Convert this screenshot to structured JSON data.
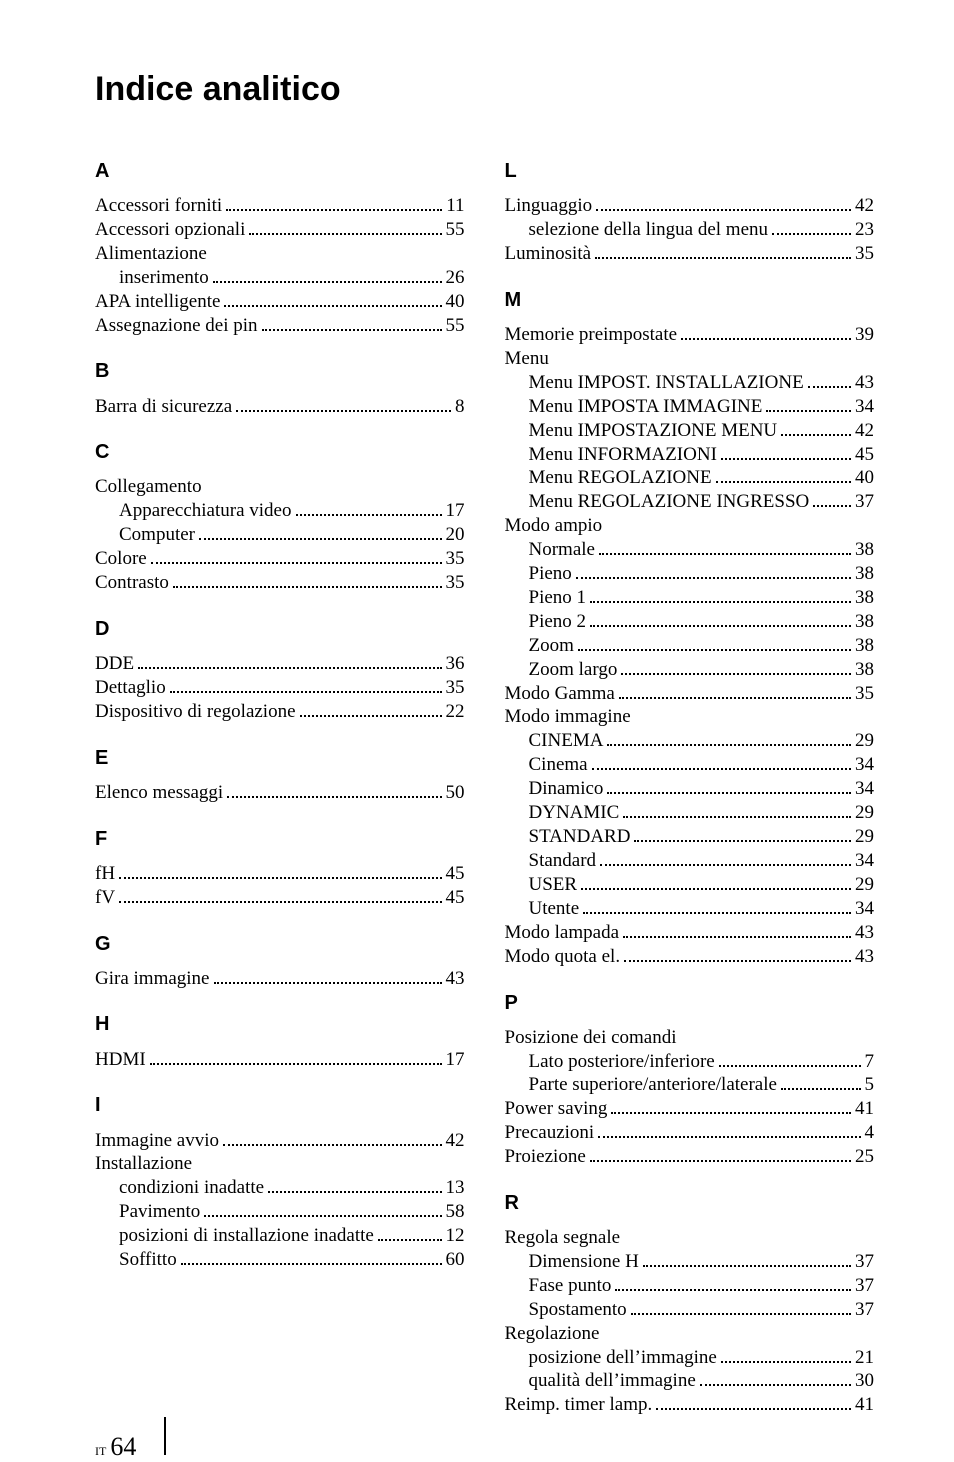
{
  "title": "Indice analitico",
  "footer": {
    "lang_code": "IT",
    "page_number": "64"
  },
  "left_column": [
    {
      "type": "letter",
      "text": "A"
    },
    {
      "type": "entry",
      "label": "Accessori forniti",
      "page": "11"
    },
    {
      "type": "entry",
      "label": "Accessori opzionali",
      "page": "55"
    },
    {
      "type": "header",
      "label": "Alimentazione"
    },
    {
      "type": "entry",
      "level": 2,
      "label": "inserimento",
      "page": "26"
    },
    {
      "type": "entry",
      "label": "APA intelligente",
      "page": "40"
    },
    {
      "type": "entry",
      "label": "Assegnazione dei pin",
      "page": "55"
    },
    {
      "type": "letter",
      "text": "B"
    },
    {
      "type": "entry",
      "label": "Barra di sicurezza",
      "page": "8"
    },
    {
      "type": "letter",
      "text": "C"
    },
    {
      "type": "header",
      "label": "Collegamento"
    },
    {
      "type": "entry",
      "level": 2,
      "label": "Apparecchiatura video",
      "page": "17"
    },
    {
      "type": "entry",
      "level": 2,
      "label": "Computer",
      "page": "20"
    },
    {
      "type": "entry",
      "label": "Colore",
      "page": "35"
    },
    {
      "type": "entry",
      "label": "Contrasto",
      "page": "35"
    },
    {
      "type": "letter",
      "text": "D"
    },
    {
      "type": "entry",
      "label": "DDE",
      "page": "36"
    },
    {
      "type": "entry",
      "label": "Dettaglio",
      "page": "35"
    },
    {
      "type": "entry",
      "label": "Dispositivo di regolazione",
      "page": "22"
    },
    {
      "type": "letter",
      "text": "E"
    },
    {
      "type": "entry",
      "label": "Elenco messaggi",
      "page": "50"
    },
    {
      "type": "letter",
      "text": "F"
    },
    {
      "type": "entry",
      "label": "fH",
      "page": "45"
    },
    {
      "type": "entry",
      "label": "fV",
      "page": "45"
    },
    {
      "type": "letter",
      "text": "G"
    },
    {
      "type": "entry",
      "label": "Gira immagine",
      "page": "43"
    },
    {
      "type": "letter",
      "text": "H"
    },
    {
      "type": "entry",
      "label": "HDMI",
      "page": "17"
    },
    {
      "type": "letter",
      "text": "I"
    },
    {
      "type": "entry",
      "label": "Immagine avvio",
      "page": "42"
    },
    {
      "type": "header",
      "label": "Installazione"
    },
    {
      "type": "entry",
      "level": 2,
      "label": "condizioni inadatte",
      "page": "13"
    },
    {
      "type": "entry",
      "level": 2,
      "label": "Pavimento",
      "page": "58"
    },
    {
      "type": "entry",
      "level": 2,
      "label": "posizioni di installazione inadatte",
      "page": "12"
    },
    {
      "type": "entry",
      "level": 2,
      "label": "Soffitto",
      "page": "60"
    }
  ],
  "right_column": [
    {
      "type": "letter",
      "text": "L"
    },
    {
      "type": "entry",
      "label": "Linguaggio",
      "page": "42"
    },
    {
      "type": "entry",
      "level": 2,
      "label": "selezione della lingua del menu",
      "page": "23"
    },
    {
      "type": "entry",
      "label": "Luminosità",
      "page": "35"
    },
    {
      "type": "letter",
      "text": "M"
    },
    {
      "type": "entry",
      "label": "Memorie preimpostate",
      "page": "39"
    },
    {
      "type": "header",
      "label": "Menu"
    },
    {
      "type": "entry",
      "level": 2,
      "label": "Menu IMPOST. INSTALLAZIONE",
      "page": "43"
    },
    {
      "type": "entry",
      "level": 2,
      "label": "Menu IMPOSTA IMMAGINE",
      "page": "34"
    },
    {
      "type": "entry",
      "level": 2,
      "label": "Menu IMPOSTAZIONE MENU",
      "page": "42"
    },
    {
      "type": "entry",
      "level": 2,
      "label": "Menu INFORMAZIONI",
      "page": "45"
    },
    {
      "type": "entry",
      "level": 2,
      "label": "Menu REGOLAZIONE",
      "page": "40"
    },
    {
      "type": "entry",
      "level": 2,
      "label": "Menu REGOLAZIONE INGRESSO",
      "page": "37"
    },
    {
      "type": "header",
      "label": "Modo ampio"
    },
    {
      "type": "entry",
      "level": 2,
      "label": "Normale",
      "page": "38"
    },
    {
      "type": "entry",
      "level": 2,
      "label": "Pieno",
      "page": "38"
    },
    {
      "type": "entry",
      "level": 2,
      "label": "Pieno 1",
      "page": "38"
    },
    {
      "type": "entry",
      "level": 2,
      "label": "Pieno 2",
      "page": "38"
    },
    {
      "type": "entry",
      "level": 2,
      "label": "Zoom",
      "page": "38"
    },
    {
      "type": "entry",
      "level": 2,
      "label": "Zoom largo",
      "page": "38"
    },
    {
      "type": "entry",
      "label": "Modo Gamma",
      "page": "35"
    },
    {
      "type": "header",
      "label": "Modo immagine"
    },
    {
      "type": "entry",
      "level": 2,
      "label": "CINEMA",
      "page": "29"
    },
    {
      "type": "entry",
      "level": 2,
      "label": "Cinema",
      "page": "34"
    },
    {
      "type": "entry",
      "level": 2,
      "label": "Dinamico",
      "page": "34"
    },
    {
      "type": "entry",
      "level": 2,
      "label": "DYNAMIC",
      "page": "29"
    },
    {
      "type": "entry",
      "level": 2,
      "label": "STANDARD",
      "page": "29"
    },
    {
      "type": "entry",
      "level": 2,
      "label": "Standard",
      "page": "34"
    },
    {
      "type": "entry",
      "level": 2,
      "label": "USER",
      "page": "29"
    },
    {
      "type": "entry",
      "level": 2,
      "label": "Utente",
      "page": "34"
    },
    {
      "type": "entry",
      "label": "Modo lampada",
      "page": "43"
    },
    {
      "type": "entry",
      "label": "Modo quota el.",
      "page": "43"
    },
    {
      "type": "letter",
      "text": "P"
    },
    {
      "type": "header",
      "label": "Posizione dei comandi"
    },
    {
      "type": "entry",
      "level": 2,
      "label": "Lato posteriore/inferiore",
      "page": "7"
    },
    {
      "type": "entry",
      "level": 2,
      "label": "Parte superiore/anteriore/laterale",
      "page": "5"
    },
    {
      "type": "entry",
      "label": "Power saving",
      "page": "41"
    },
    {
      "type": "entry",
      "label": "Precauzioni",
      "page": "4"
    },
    {
      "type": "entry",
      "label": "Proiezione",
      "page": "25"
    },
    {
      "type": "letter",
      "text": "R"
    },
    {
      "type": "header",
      "label": "Regola segnale"
    },
    {
      "type": "entry",
      "level": 2,
      "label": "Dimensione H",
      "page": "37"
    },
    {
      "type": "entry",
      "level": 2,
      "label": "Fase punto",
      "page": "37"
    },
    {
      "type": "entry",
      "level": 2,
      "label": "Spostamento",
      "page": "37"
    },
    {
      "type": "header",
      "label": "Regolazione"
    },
    {
      "type": "entry",
      "level": 2,
      "label": "posizione dell’immagine",
      "page": "21"
    },
    {
      "type": "entry",
      "level": 2,
      "label": "qualità dell’immagine",
      "page": "30"
    },
    {
      "type": "entry",
      "label": "Reimp. timer lamp.",
      "page": "41"
    }
  ]
}
